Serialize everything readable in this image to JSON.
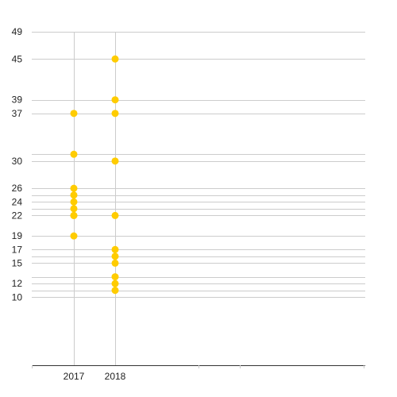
{
  "chart_data": {
    "type": "scatter",
    "categories": [
      "2017",
      "2018"
    ],
    "series": [
      {
        "values": [
          [
            37,
            31,
            26,
            25,
            24,
            23,
            22,
            22,
            19
          ],
          [
            45,
            39,
            37,
            30,
            22,
            17,
            16,
            15,
            13,
            12,
            11
          ]
        ]
      }
    ],
    "y_ticks": [
      49,
      45,
      39,
      37,
      30,
      26,
      24,
      22,
      19,
      17,
      15,
      12,
      10
    ],
    "ylim": [
      0,
      49
    ],
    "grid": true,
    "legend": "none",
    "colors": {
      "point": "#FFCC00",
      "grid": "#CCCCCC",
      "axis": "#333333",
      "label": "#222222"
    }
  }
}
